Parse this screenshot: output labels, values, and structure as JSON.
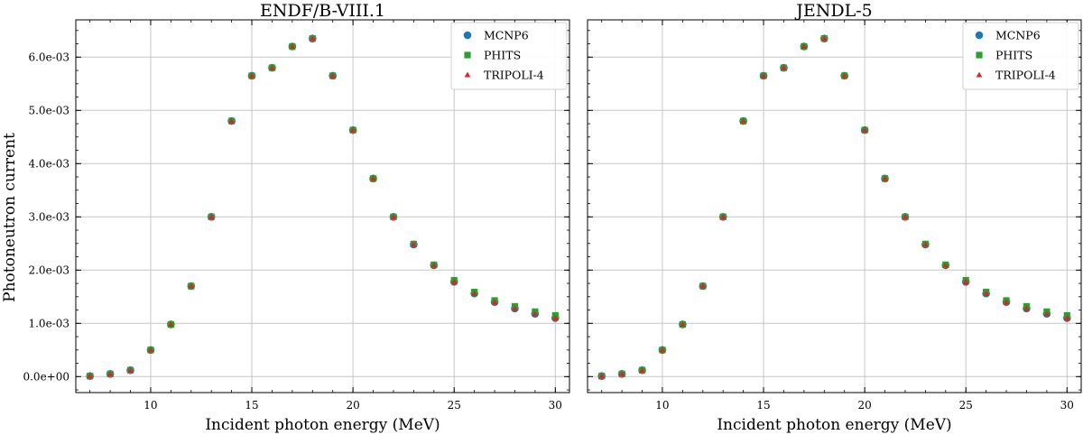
{
  "figure": {
    "ylabel": "Photoneutron current",
    "colors": {
      "MCNP6": "#1f77b4",
      "PHITS": "#2ca02c",
      "TRIPOLI-4": "#d62728"
    },
    "markers": {
      "MCNP6": "circle",
      "PHITS": "square",
      "TRIPOLI-4": "triangle"
    }
  },
  "chart_data": [
    {
      "type": "scatter",
      "title": "ENDF/B-VIII.1",
      "xlabel": "Incident photon energy (MeV)",
      "ylabel": "Photoneutron current",
      "xlim": [
        6.3,
        30.7
      ],
      "ylim": [
        -0.0003,
        0.0067
      ],
      "xticks": [
        10,
        15,
        20,
        25,
        30
      ],
      "xtick_labels": [
        "10",
        "15",
        "20",
        "25",
        "30"
      ],
      "yticks": [
        0,
        0.001,
        0.002,
        0.003,
        0.004,
        0.005,
        0.006
      ],
      "ytick_labels": [
        "0.0e+00",
        "1.0e-03",
        "2.0e-03",
        "3.0e-03",
        "4.0e-03",
        "5.0e-03",
        "6.0e-03"
      ],
      "grid": true,
      "legend_position": "top-right",
      "x": [
        7,
        8,
        9,
        10,
        11,
        12,
        13,
        14,
        15,
        16,
        17,
        18,
        19,
        20,
        21,
        22,
        23,
        24,
        25,
        26,
        27,
        28,
        29,
        30
      ],
      "series": [
        {
          "name": "MCNP6",
          "marker": "circle",
          "values": [
            1e-05,
            5e-05,
            0.00012,
            0.0005,
            0.00098,
            0.0017,
            0.003,
            0.0048,
            0.00565,
            0.0058,
            0.0062,
            0.00635,
            0.00565,
            0.00463,
            0.00372,
            0.003,
            0.00248,
            0.00209,
            0.00178,
            0.00156,
            0.0014,
            0.00128,
            0.00118,
            0.0011
          ]
        },
        {
          "name": "PHITS",
          "marker": "square",
          "values": [
            1e-05,
            5e-05,
            0.00012,
            0.0005,
            0.00098,
            0.0017,
            0.003,
            0.0048,
            0.00565,
            0.0058,
            0.0062,
            0.00635,
            0.00565,
            0.00463,
            0.00372,
            0.003,
            0.00249,
            0.0021,
            0.00181,
            0.00159,
            0.00143,
            0.00132,
            0.00122,
            0.00115
          ]
        },
        {
          "name": "TRIPOLI-4",
          "marker": "triangle",
          "values": [
            1e-05,
            5e-05,
            0.00012,
            0.0005,
            0.00098,
            0.0017,
            0.003,
            0.0048,
            0.00565,
            0.0058,
            0.0062,
            0.00635,
            0.00565,
            0.00463,
            0.00372,
            0.003,
            0.00248,
            0.00209,
            0.00178,
            0.00156,
            0.0014,
            0.00128,
            0.00118,
            0.0011
          ]
        }
      ]
    },
    {
      "type": "scatter",
      "title": "JENDL-5",
      "xlabel": "Incident photon energy (MeV)",
      "ylabel": "",
      "xlim": [
        6.3,
        30.7
      ],
      "ylim": [
        -0.0003,
        0.0067
      ],
      "xticks": [
        10,
        15,
        20,
        25,
        30
      ],
      "xtick_labels": [
        "10",
        "15",
        "20",
        "25",
        "30"
      ],
      "yticks": [
        0,
        0.001,
        0.002,
        0.003,
        0.004,
        0.005,
        0.006
      ],
      "ytick_labels": [],
      "grid": true,
      "legend_position": "top-right",
      "x": [
        7,
        8,
        9,
        10,
        11,
        12,
        13,
        14,
        15,
        16,
        17,
        18,
        19,
        20,
        21,
        22,
        23,
        24,
        25,
        26,
        27,
        28,
        29,
        30
      ],
      "series": [
        {
          "name": "MCNP6",
          "marker": "circle",
          "values": [
            1e-05,
            5e-05,
            0.00012,
            0.0005,
            0.00098,
            0.0017,
            0.003,
            0.0048,
            0.00565,
            0.0058,
            0.0062,
            0.00635,
            0.00565,
            0.00463,
            0.00372,
            0.003,
            0.00248,
            0.00209,
            0.00178,
            0.00156,
            0.0014,
            0.00128,
            0.00118,
            0.0011
          ]
        },
        {
          "name": "PHITS",
          "marker": "square",
          "values": [
            1e-05,
            5e-05,
            0.00012,
            0.0005,
            0.00098,
            0.0017,
            0.003,
            0.0048,
            0.00565,
            0.0058,
            0.0062,
            0.00635,
            0.00565,
            0.00463,
            0.00372,
            0.003,
            0.00249,
            0.0021,
            0.00181,
            0.00159,
            0.00143,
            0.00132,
            0.00122,
            0.00115
          ]
        },
        {
          "name": "TRIPOLI-4",
          "marker": "triangle",
          "values": [
            1e-05,
            5e-05,
            0.00012,
            0.0005,
            0.00098,
            0.0017,
            0.003,
            0.0048,
            0.00565,
            0.0058,
            0.0062,
            0.00635,
            0.00565,
            0.00463,
            0.00372,
            0.003,
            0.00248,
            0.00209,
            0.00178,
            0.00156,
            0.0014,
            0.00128,
            0.00118,
            0.0011
          ]
        }
      ]
    }
  ]
}
